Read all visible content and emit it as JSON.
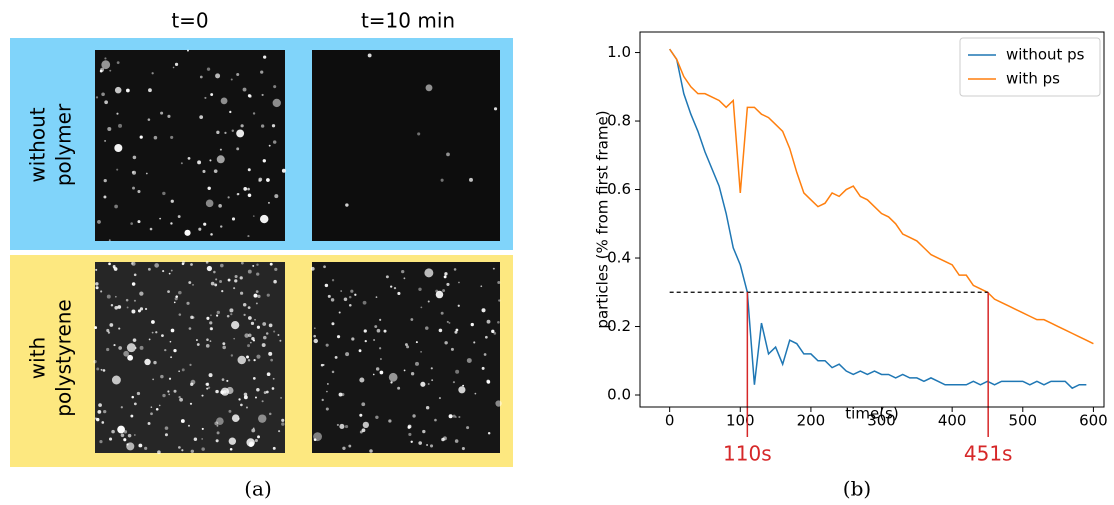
{
  "panel_a": {
    "columns": [
      "t=0",
      "t=10 min"
    ],
    "rows": [
      [
        "without",
        "polymer"
      ],
      [
        "with",
        "polystyrene"
      ]
    ],
    "caption": "(a)"
  },
  "panel_b": {
    "caption": "(b)"
  },
  "chart_data": {
    "type": "line",
    "xlabel": "time(s)",
    "ylabel": "particles (% from first frame)",
    "x": [
      0,
      10,
      20,
      30,
      40,
      50,
      60,
      70,
      80,
      90,
      100,
      110,
      120,
      130,
      140,
      150,
      160,
      170,
      180,
      190,
      200,
      210,
      220,
      230,
      240,
      250,
      260,
      270,
      280,
      290,
      300,
      310,
      320,
      330,
      340,
      350,
      360,
      370,
      380,
      390,
      400,
      410,
      420,
      430,
      440,
      450,
      460,
      470,
      480,
      490,
      500,
      510,
      520,
      530,
      540,
      550,
      560,
      570,
      580,
      590,
      600
    ],
    "series": [
      {
        "name": "without ps",
        "color": "#1f77b4",
        "values": [
          1.01,
          0.98,
          0.88,
          0.82,
          0.77,
          0.71,
          0.66,
          0.61,
          0.53,
          0.43,
          0.38,
          0.3,
          0.03,
          0.21,
          0.12,
          0.14,
          0.09,
          0.16,
          0.15,
          0.12,
          0.12,
          0.1,
          0.1,
          0.08,
          0.09,
          0.07,
          0.06,
          0.07,
          0.06,
          0.07,
          0.06,
          0.06,
          0.05,
          0.06,
          0.05,
          0.05,
          0.04,
          0.05,
          0.04,
          0.03,
          0.03,
          0.03,
          0.03,
          0.04,
          0.03,
          0.04,
          0.03,
          0.04,
          0.04,
          0.04,
          0.04,
          0.03,
          0.04,
          0.03,
          0.04,
          0.04,
          0.04,
          0.02,
          0.03,
          0.03,
          null
        ]
      },
      {
        "name": "with ps",
        "color": "#ff7f0e",
        "values": [
          1.01,
          0.98,
          0.93,
          0.9,
          0.88,
          0.88,
          0.87,
          0.86,
          0.84,
          0.86,
          0.59,
          0.84,
          0.84,
          0.82,
          0.81,
          0.79,
          0.77,
          0.72,
          0.65,
          0.59,
          0.57,
          0.55,
          0.56,
          0.59,
          0.58,
          0.6,
          0.61,
          0.58,
          0.57,
          0.55,
          0.53,
          0.52,
          0.5,
          0.47,
          0.46,
          0.45,
          0.43,
          0.41,
          0.4,
          0.39,
          0.38,
          0.35,
          0.35,
          0.32,
          0.31,
          0.3,
          0.28,
          0.27,
          0.26,
          0.25,
          0.24,
          0.23,
          0.22,
          0.22,
          0.21,
          0.2,
          0.19,
          0.18,
          0.17,
          0.16,
          0.15
        ]
      }
    ],
    "xlim": [
      -42,
      615
    ],
    "ylim": [
      -0.035,
      1.06
    ],
    "xticks": [
      0,
      100,
      200,
      300,
      400,
      500,
      600
    ],
    "yticks": [
      {
        "value": 0,
        "label": "0.0"
      },
      0.2,
      0.4,
      0.6,
      0.8,
      {
        "value": 1,
        "label": "1.0"
      }
    ],
    "threshold": 0.3,
    "annotations": [
      {
        "x": 110,
        "label": "110s"
      },
      {
        "x": 451,
        "label": "451s"
      }
    ],
    "legend": "upper right"
  }
}
